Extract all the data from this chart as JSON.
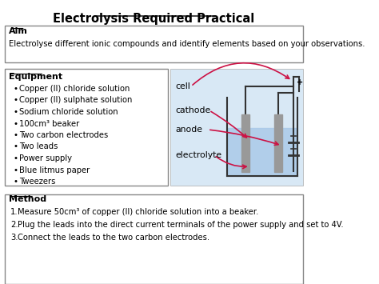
{
  "title": "Electrolysis Required Practical",
  "bg_color": "#ffffff",
  "aim_heading": "Aim",
  "aim_text": "Electrolyse different ionic compounds and identify elements based on your observations.",
  "equipment_heading": "Equipment",
  "equipment_items": [
    "Copper (II) chloride solution",
    "Copper (II) sulphate solution",
    "Sodium chloride solution",
    "100cm³ beaker",
    "Two carbon electrodes",
    "Two leads",
    "Power supply",
    "Blue litmus paper",
    "Tweezers"
  ],
  "diagram_bg": "#d8e8f5",
  "diagram_labels": [
    "cell",
    "cathode",
    "anode",
    "electrolyte"
  ],
  "arrow_color": "#cc1144",
  "method_heading": "Method",
  "method_items": [
    "Measure 50cm³ of copper (II) chloride solution into a beaker.",
    "Plug the leads into the direct current terminals of the power supply and set to 4V.",
    "Connect the leads to the two carbon electrodes."
  ]
}
